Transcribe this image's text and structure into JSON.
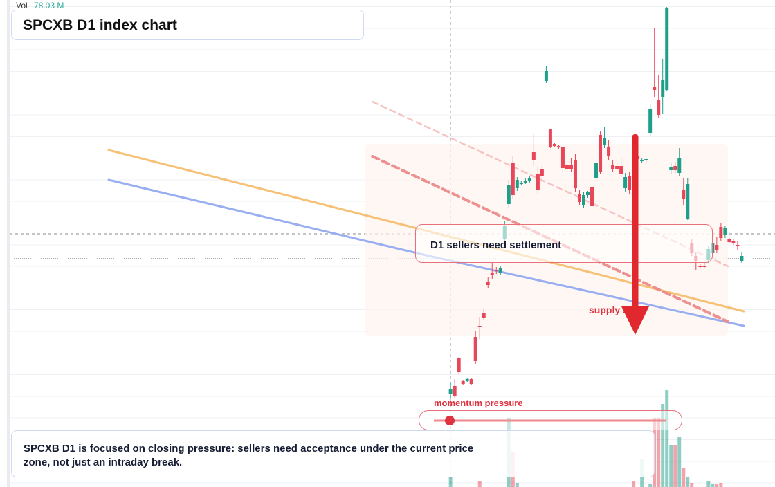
{
  "chart_data": {
    "type": "candlestick",
    "title": "SPCXB D1 index chart",
    "x": [
      0,
      1,
      2,
      3,
      4,
      5,
      6,
      7,
      8,
      9,
      10,
      11,
      12,
      13,
      14,
      15,
      16,
      17,
      18,
      19,
      20,
      21,
      22,
      23,
      24,
      25,
      26,
      27,
      28,
      29,
      30,
      31,
      32,
      33,
      34,
      35,
      36,
      37,
      38,
      39,
      40,
      41,
      42,
      43,
      44,
      45,
      46,
      47,
      48,
      49,
      50,
      51,
      52,
      53,
      54,
      55,
      56,
      57,
      58,
      59,
      60,
      61,
      62,
      63,
      64,
      65,
      66,
      67,
      68,
      69,
      70
    ],
    "xlim": [
      -106,
      78
    ],
    "ylim": [
      0,
      704
    ],
    "open": [
      134,
      146,
      186,
      153,
      153,
      156,
      217,
      233,
      252,
      296,
      310,
      314,
      309,
      358,
      409,
      468,
      432,
      438,
      440,
      442,
      484,
      452,
      459,
      587,
      517,
      496,
      493,
      491,
      466,
      466,
      472,
      424,
      408,
      422,
      434,
      446,
      509,
      494,
      492,
      466,
      464,
      464,
      432,
      450,
      489,
      479,
      471,
      472,
      512,
      578,
      559,
      564,
      574,
      458,
      464,
      454,
      429,
      388,
      352,
      334,
      320,
      320,
      328,
      338,
      350,
      376,
      364,
      358,
      356,
      350,
      326
    ],
    "high": [
      152,
      156,
      188,
      154,
      157,
      158,
      226,
      246,
      258,
      304,
      324,
      318,
      320,
      384,
      444,
      478,
      448,
      442,
      446,
      449,
      510,
      464,
      464,
      609,
      518,
      498,
      495,
      494,
      469,
      476,
      482,
      430,
      426,
      428,
      436,
      472,
      514,
      520,
      502,
      472,
      468,
      476,
      454,
      456,
      494,
      482,
      476,
      476,
      554,
      664,
      596,
      619,
      694,
      468,
      470,
      490,
      446,
      446,
      358,
      340,
      322,
      324,
      348,
      358,
      362,
      382,
      378,
      360,
      358,
      356,
      340
    ],
    "low": [
      129,
      129,
      164,
      148,
      152,
      148,
      178,
      214,
      242,
      288,
      300,
      308,
      307,
      354,
      404,
      416,
      428,
      436,
      438,
      440,
      464,
      424,
      446,
      584,
      490,
      491,
      489,
      456,
      458,
      456,
      426,
      408,
      404,
      418,
      404,
      442,
      452,
      490,
      472,
      456,
      458,
      448,
      426,
      424,
      478,
      470,
      468,
      470,
      508,
      564,
      534,
      539,
      572,
      452,
      454,
      450,
      408,
      386,
      334,
      314,
      316,
      316,
      324,
      334,
      338,
      356,
      360,
      352,
      350,
      342,
      324
    ],
    "close": [
      142,
      132,
      166,
      149,
      156,
      149,
      182,
      231,
      244,
      292,
      306,
      312,
      317,
      378,
      436,
      422,
      444,
      440,
      443,
      446,
      472,
      429,
      449,
      602,
      492,
      493,
      491,
      461,
      460,
      460,
      432,
      412,
      422,
      426,
      406,
      468,
      456,
      504,
      478,
      460,
      460,
      452,
      448,
      429,
      482,
      474,
      473,
      474,
      546,
      574,
      538,
      589,
      692,
      462,
      458,
      476,
      416,
      438,
      338,
      326,
      318,
      318,
      344,
      352,
      342,
      360,
      374,
      354,
      352,
      348,
      334
    ],
    "up_color": "#1f9e89",
    "down_color": "#e8475a",
    "volume": {
      "label": "Vol",
      "value_label": "78.03 M",
      "ylim": [
        0,
        200
      ],
      "values": [
        14,
        null,
        null,
        null,
        null,
        null,
        null,
        8,
        null,
        null,
        null,
        null,
        null,
        null,
        100,
        50,
        6,
        null,
        null,
        null,
        null,
        null,
        null,
        null,
        null,
        null,
        null,
        null,
        null,
        null,
        null,
        null,
        null,
        null,
        null,
        null,
        null,
        null,
        null,
        null,
        null,
        null,
        null,
        null,
        8,
        null,
        40,
        null,
        4,
        100,
        100,
        120,
        140,
        60,
        60,
        72,
        28,
        15,
        6,
        null,
        null,
        null,
        8,
        4,
        4,
        6,
        null,
        null,
        null,
        null,
        null
      ]
    },
    "trendlines": [
      {
        "color": "#f6bd6e",
        "style": "solid",
        "x": [
          -82.2,
          70.5
        ],
        "y": [
          487,
          254
        ]
      },
      {
        "color": "#93aaf0",
        "style": "solid",
        "x": [
          -82.2,
          -5.2,
          70.5
        ],
        "y": [
          444,
          334,
          233
        ]
      },
      {
        "color": "#ec8a8a",
        "style": "dashed",
        "x": [
          -18.8,
          66.7
        ],
        "y": [
          478,
          239
        ]
      },
      {
        "color": "#f4b4b4",
        "style": "dashed-light",
        "x": [
          -18.8,
          66.7
        ],
        "y": [
          557,
          319
        ]
      }
    ],
    "zone": {
      "label": "supply zone",
      "x": [
        -20.6,
        66.7
      ],
      "top": 496,
      "bottom": 219
    },
    "annotation": "D1 sellers need settlement",
    "indicator_label": "momentum pressure",
    "footer": "SPCXB D1 is focused on closing pressure: sellers need acceptance under the current price zone, not just an intraday break."
  }
}
